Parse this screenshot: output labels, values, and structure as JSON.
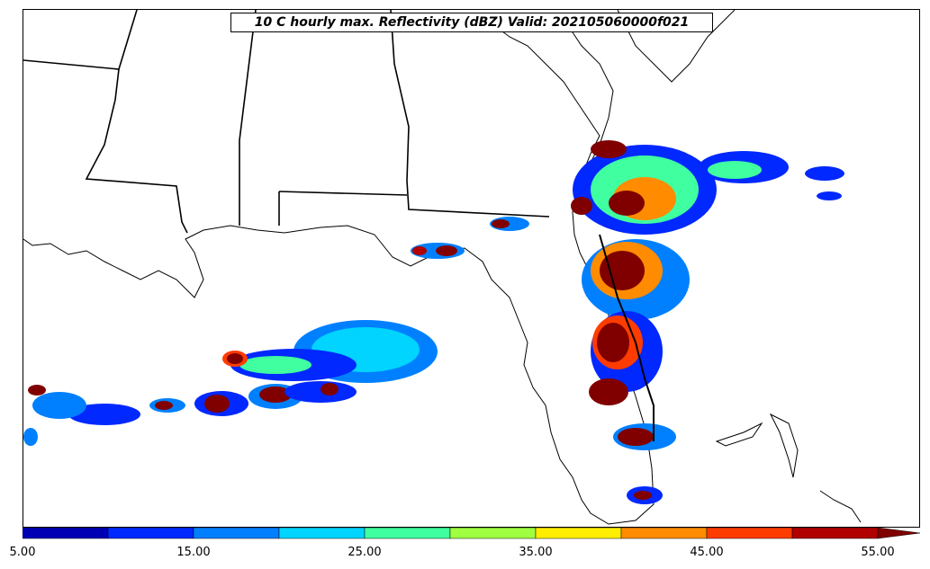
{
  "map": {
    "title": "10 C hourly max. Reflectivity (dBZ) Valid: 202105060000f021"
  },
  "colorbar": {
    "colors": [
      "#0000b4",
      "#0028ff",
      "#0080ff",
      "#00d4ff",
      "#40ffa0",
      "#a0ff40",
      "#ffee00",
      "#ff8c00",
      "#ff3c00",
      "#b00000"
    ],
    "extend_color": "#800000",
    "min": 5.0,
    "max": 55.0,
    "tick_labels": [
      "5.00",
      "15.00",
      "25.00",
      "35.00",
      "45.00",
      "55.00"
    ]
  }
}
